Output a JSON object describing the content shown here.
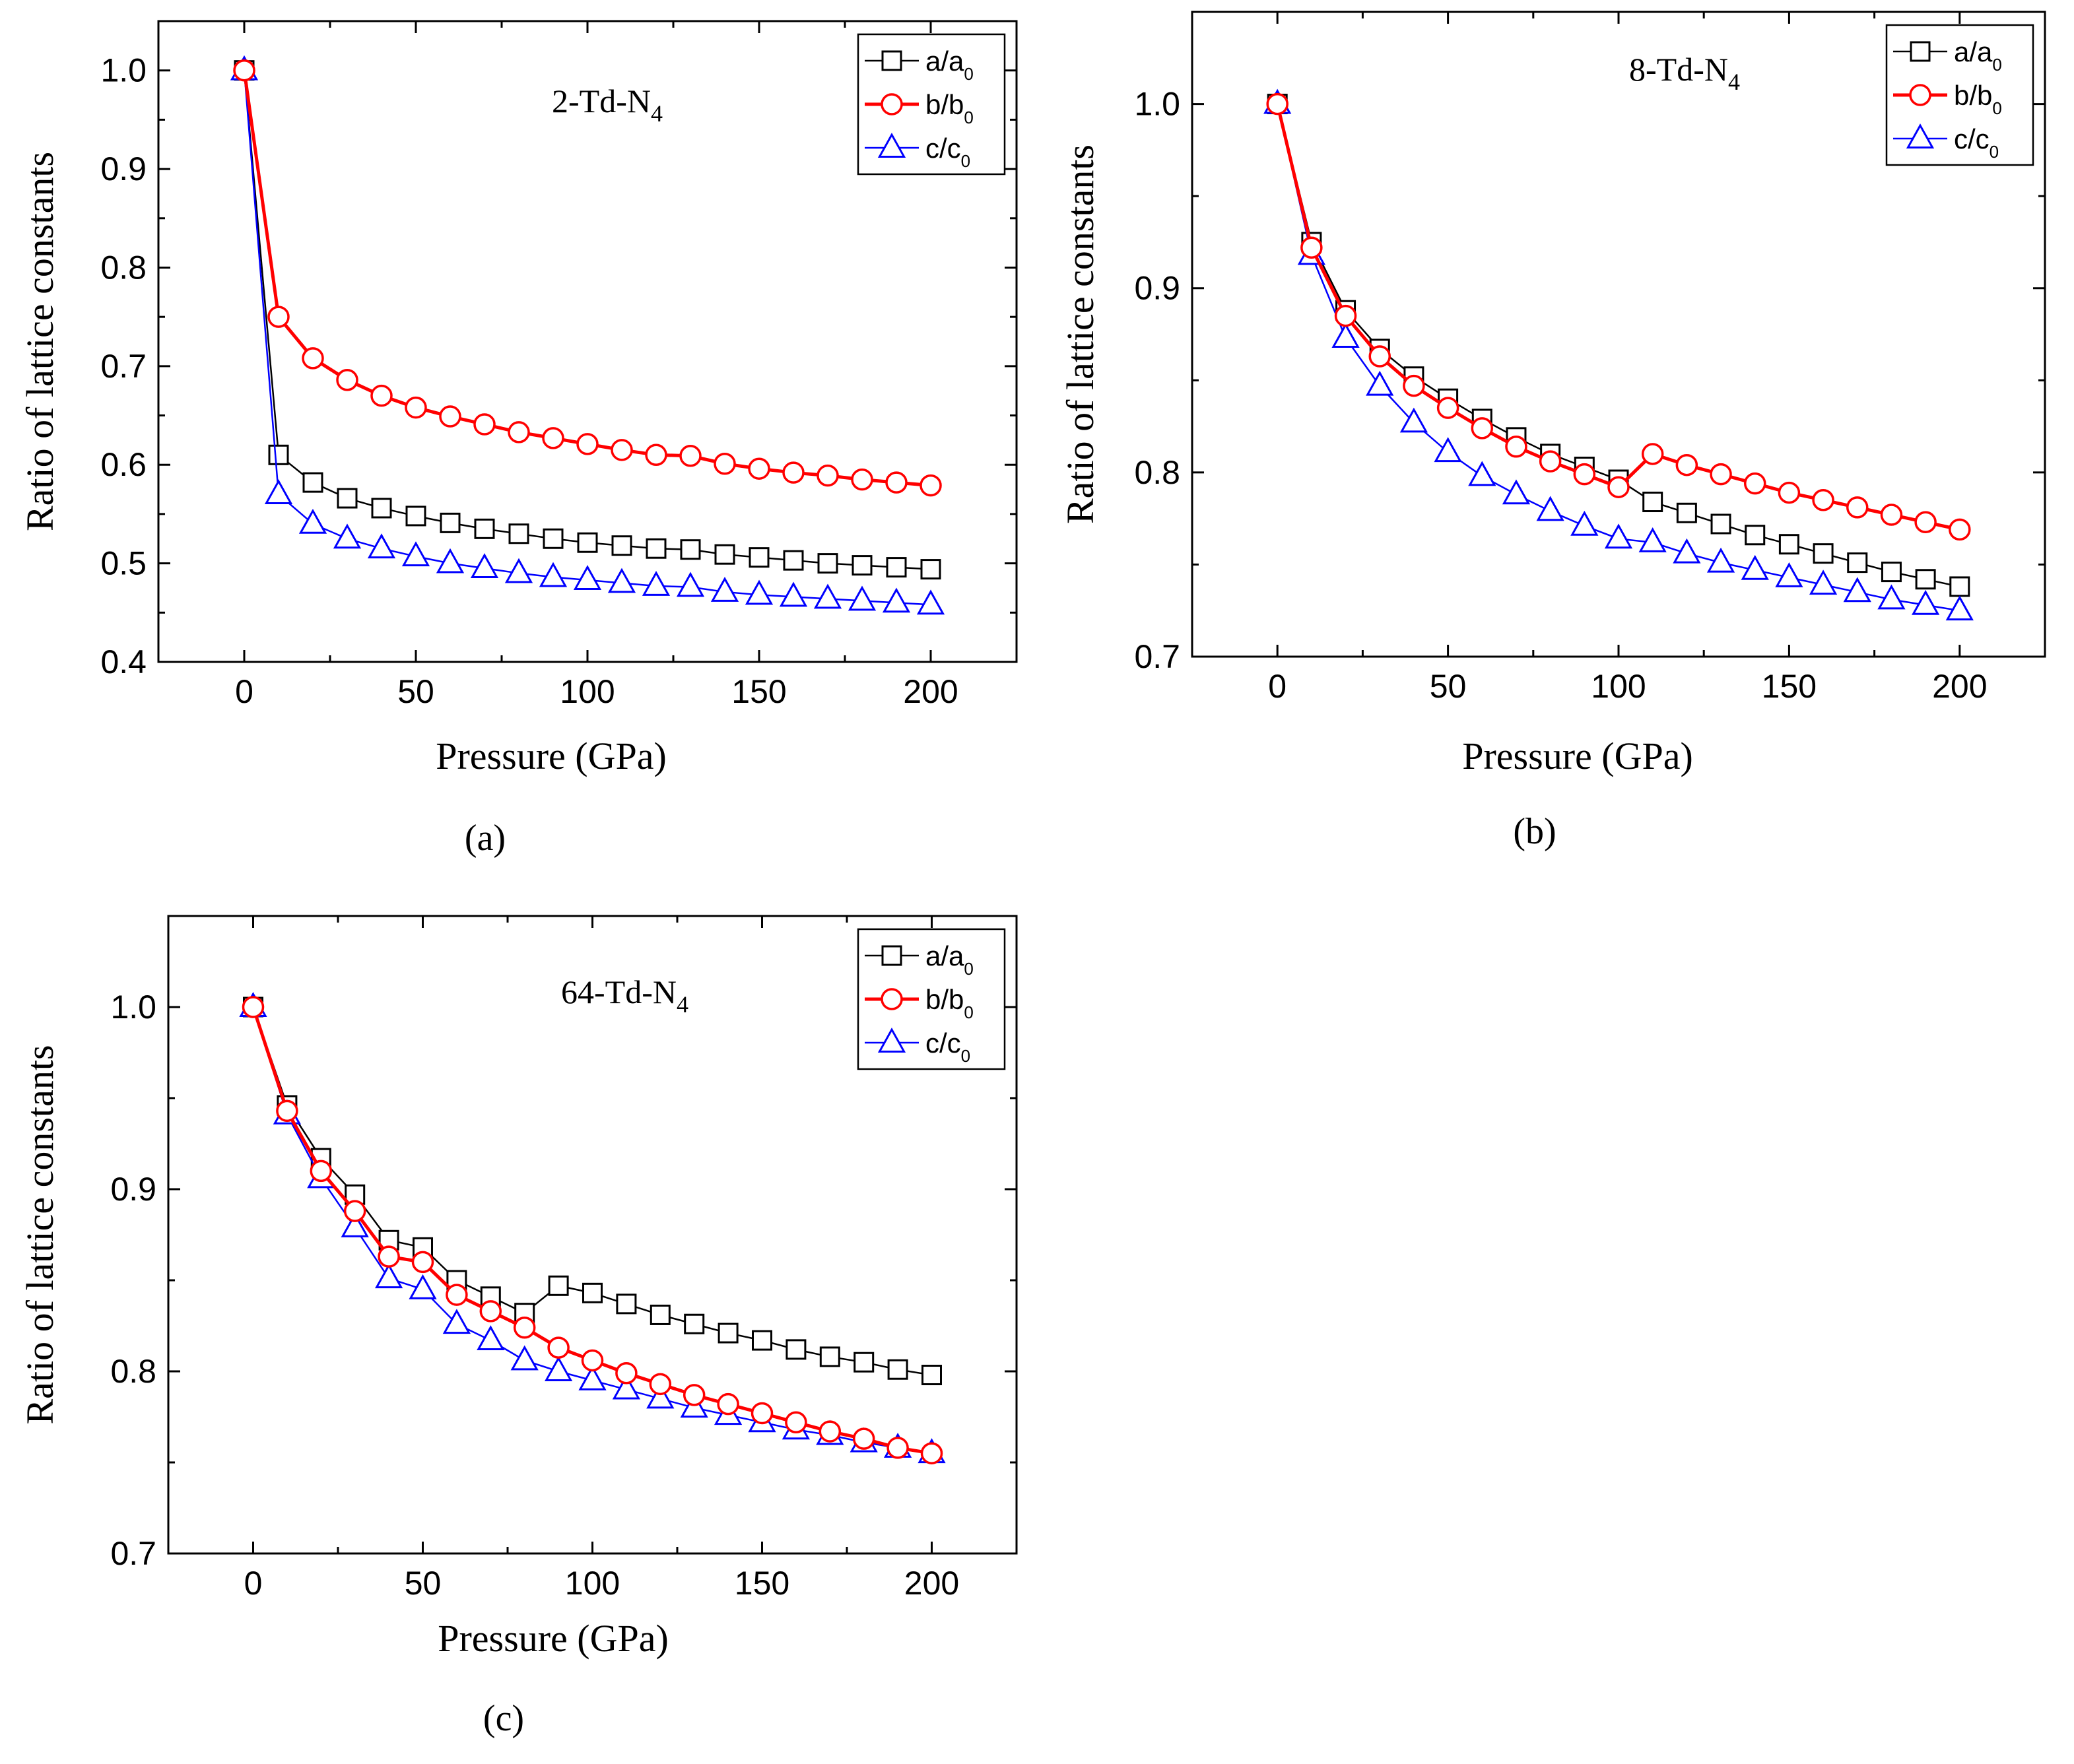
{
  "chart_data": [
    {
      "id": "a",
      "type": "line",
      "title": "2-Td-N",
      "title_sub": "4",
      "caption": "(a)",
      "xlabel": "Pressure (GPa)",
      "ylabel": "Ratio of lattice constants",
      "xlim": [
        -25,
        225
      ],
      "ylim": [
        0.4,
        1.05
      ],
      "xticks": [
        "0",
        "50",
        "100",
        "150",
        "200"
      ],
      "xtick_values": [
        0,
        50,
        100,
        150,
        200
      ],
      "yticks": [
        "0.4",
        "0.5",
        "0.6",
        "0.7",
        "0.8",
        "0.9",
        "1.0"
      ],
      "ytick_values": [
        0.4,
        0.5,
        0.6,
        0.7,
        0.8,
        0.9,
        1.0
      ],
      "legend_position": "top-right",
      "x": [
        0,
        10,
        20,
        30,
        40,
        50,
        60,
        70,
        80,
        90,
        100,
        110,
        120,
        130,
        140,
        150,
        160,
        170,
        180,
        190,
        200
      ],
      "series": [
        {
          "name": "a/a",
          "name_sub": "0",
          "marker": "square",
          "color": "#000000",
          "values": [
            1.0,
            0.61,
            0.582,
            0.566,
            0.556,
            0.548,
            0.541,
            0.535,
            0.53,
            0.525,
            0.521,
            0.518,
            0.515,
            0.514,
            0.509,
            0.506,
            0.503,
            0.5,
            0.498,
            0.496,
            0.494
          ]
        },
        {
          "name": "b/b",
          "name_sub": "0",
          "marker": "circle",
          "color": "#ff0000",
          "values": [
            1.0,
            0.75,
            0.708,
            0.686,
            0.67,
            0.658,
            0.649,
            0.641,
            0.633,
            0.627,
            0.621,
            0.615,
            0.61,
            0.609,
            0.601,
            0.596,
            0.592,
            0.589,
            0.585,
            0.582,
            0.579
          ]
        },
        {
          "name": "c/c",
          "name_sub": "0",
          "marker": "triangle",
          "color": "#0000ff",
          "values": [
            1.0,
            0.57,
            0.54,
            0.525,
            0.515,
            0.507,
            0.5,
            0.495,
            0.49,
            0.486,
            0.483,
            0.48,
            0.477,
            0.476,
            0.471,
            0.468,
            0.466,
            0.464,
            0.462,
            0.46,
            0.458
          ]
        }
      ]
    },
    {
      "id": "b",
      "type": "line",
      "title": "8-Td-N",
      "title_sub": "4",
      "caption": "(b)",
      "xlabel": "Pressure (GPa)",
      "ylabel": "Ratio of lattice constants",
      "xlim": [
        -25,
        225
      ],
      "ylim": [
        0.7,
        1.05
      ],
      "xticks": [
        "0",
        "50",
        "100",
        "150",
        "200"
      ],
      "xtick_values": [
        0,
        50,
        100,
        150,
        200
      ],
      "yticks": [
        "0.7",
        "0.8",
        "0.9",
        "1.0"
      ],
      "ytick_values": [
        0.7,
        0.8,
        0.9,
        1.0
      ],
      "legend_position": "top-right",
      "x": [
        0,
        10,
        20,
        30,
        40,
        50,
        60,
        70,
        80,
        90,
        100,
        110,
        120,
        130,
        140,
        150,
        160,
        170,
        180,
        190,
        200
      ],
      "series": [
        {
          "name": "a/a",
          "name_sub": "0",
          "marker": "square",
          "color": "#000000",
          "values": [
            1.0,
            0.925,
            0.888,
            0.867,
            0.852,
            0.84,
            0.829,
            0.819,
            0.81,
            0.803,
            0.796,
            0.784,
            0.778,
            0.772,
            0.766,
            0.761,
            0.756,
            0.751,
            0.746,
            0.742,
            0.738
          ]
        },
        {
          "name": "b/b",
          "name_sub": "0",
          "marker": "circle",
          "color": "#ff0000",
          "values": [
            1.0,
            0.922,
            0.885,
            0.863,
            0.847,
            0.835,
            0.824,
            0.814,
            0.806,
            0.799,
            0.792,
            0.81,
            0.804,
            0.799,
            0.794,
            0.789,
            0.785,
            0.781,
            0.777,
            0.773,
            0.769
          ]
        },
        {
          "name": "c/c",
          "name_sub": "0",
          "marker": "triangle",
          "color": "#0000ff",
          "values": [
            1.0,
            0.918,
            0.873,
            0.847,
            0.827,
            0.811,
            0.798,
            0.788,
            0.779,
            0.771,
            0.764,
            0.762,
            0.756,
            0.751,
            0.747,
            0.743,
            0.739,
            0.735,
            0.731,
            0.728,
            0.725
          ]
        }
      ]
    },
    {
      "id": "c",
      "type": "line",
      "title": "64-Td-N",
      "title_sub": "4",
      "caption": "(c)",
      "xlabel": "Pressure (GPa)",
      "ylabel": "Ratio of lattice constants",
      "xlim": [
        -25,
        225
      ],
      "ylim": [
        0.7,
        1.05
      ],
      "xticks": [
        "0",
        "50",
        "100",
        "150",
        "200"
      ],
      "xtick_values": [
        0,
        50,
        100,
        150,
        200
      ],
      "yticks": [
        "0.7",
        "0.8",
        "0.9",
        "1.0"
      ],
      "ytick_values": [
        0.7,
        0.8,
        0.9,
        1.0
      ],
      "legend_position": "top-right",
      "x": [
        0,
        10,
        20,
        30,
        40,
        50,
        60,
        70,
        80,
        90,
        100,
        110,
        120,
        130,
        140,
        150,
        160,
        170,
        180,
        190,
        200
      ],
      "series": [
        {
          "name": "a/a",
          "name_sub": "0",
          "marker": "square",
          "color": "#000000",
          "values": [
            1.0,
            0.946,
            0.917,
            0.897,
            0.872,
            0.868,
            0.85,
            0.841,
            0.832,
            0.847,
            0.843,
            0.837,
            0.831,
            0.826,
            0.821,
            0.817,
            0.812,
            0.808,
            0.805,
            0.801,
            0.798
          ]
        },
        {
          "name": "b/b",
          "name_sub": "0",
          "marker": "circle",
          "color": "#ff0000",
          "values": [
            1.0,
            0.943,
            0.91,
            0.888,
            0.863,
            0.86,
            0.842,
            0.833,
            0.824,
            0.813,
            0.806,
            0.799,
            0.793,
            0.787,
            0.782,
            0.777,
            0.772,
            0.767,
            0.763,
            0.758,
            0.755
          ]
        },
        {
          "name": "c/c",
          "name_sub": "0",
          "marker": "triangle",
          "color": "#0000ff",
          "values": [
            1.0,
            0.941,
            0.906,
            0.879,
            0.851,
            0.845,
            0.826,
            0.817,
            0.806,
            0.8,
            0.795,
            0.79,
            0.785,
            0.78,
            0.776,
            0.772,
            0.768,
            0.765,
            0.761,
            0.758,
            0.755
          ]
        }
      ]
    }
  ]
}
